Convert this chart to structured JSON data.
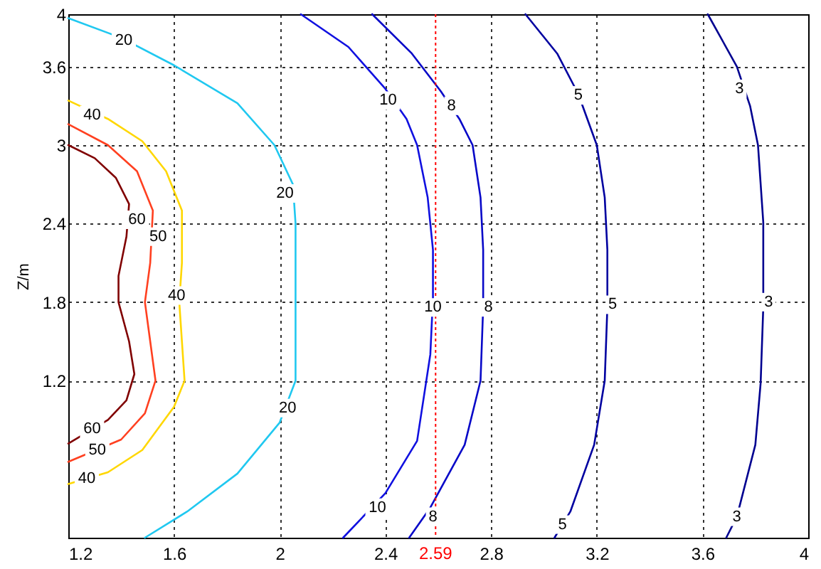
{
  "chart_data": {
    "type": "line",
    "ylabel": "Z/m",
    "xlim": [
      1.2,
      4
    ],
    "ylim": [
      0,
      4
    ],
    "xticks": [
      1.2,
      1.6,
      2,
      2.4,
      2.8,
      3.2,
      3.6,
      4
    ],
    "yticks": [
      1.2,
      1.8,
      2.4,
      3,
      3.6,
      4
    ],
    "grid": true,
    "marker": "none",
    "line_style": "solid",
    "series": [
      {
        "color": "#800000",
        "x": [
          1.2,
          1.3,
          1.38,
          1.43,
          1.42,
          1.39,
          1.39,
          1.43,
          1.45,
          1.42,
          1.35,
          1.2
        ],
        "values": [
          3.0,
          2.9,
          2.75,
          2.55,
          2.3,
          2.0,
          1.8,
          1.5,
          1.25,
          1.05,
          0.9,
          0.72
        ]
      },
      {
        "color": "#ff4020",
        "x": [
          1.2,
          1.35,
          1.46,
          1.52,
          1.51,
          1.49,
          1.51,
          1.53,
          1.49,
          1.4,
          1.2
        ],
        "values": [
          3.16,
          3.0,
          2.8,
          2.5,
          2.1,
          1.8,
          1.5,
          1.2,
          0.95,
          0.75,
          0.58
        ]
      },
      {
        "color": "#ffd700",
        "x": [
          1.2,
          1.35,
          1.48,
          1.57,
          1.63,
          1.63,
          1.62,
          1.63,
          1.64,
          1.6,
          1.48,
          1.35,
          1.2
        ],
        "values": [
          3.34,
          3.2,
          3.03,
          2.8,
          2.5,
          2.1,
          1.8,
          1.5,
          1.2,
          1.0,
          0.67,
          0.5,
          0.41
        ]
      },
      {
        "color": "#20c8f0",
        "x": [
          1.2,
          1.4,
          1.6,
          1.84,
          1.98,
          2.05,
          2.06,
          2.06,
          2.06,
          2.0,
          1.84,
          1.65,
          1.49
        ],
        "values": [
          3.97,
          3.82,
          3.61,
          3.32,
          3.0,
          2.7,
          2.4,
          1.8,
          1.2,
          0.88,
          0.49,
          0.2,
          0
        ]
      },
      {
        "color": "#1010e0",
        "x": [
          2.08,
          2.26,
          2.4,
          2.48,
          2.52,
          2.56,
          2.58,
          2.58,
          2.57,
          2.52,
          2.4,
          2.24
        ],
        "values": [
          4.0,
          3.75,
          3.43,
          3.2,
          3.0,
          2.6,
          2.2,
          1.83,
          1.4,
          0.74,
          0.34,
          0
        ]
      },
      {
        "color": "#0808c8",
        "x": [
          2.35,
          2.5,
          2.61,
          2.68,
          2.73,
          2.76,
          2.77,
          2.77,
          2.76,
          2.7,
          2.57,
          2.49
        ],
        "values": [
          4.0,
          3.7,
          3.41,
          3.2,
          3.0,
          2.6,
          2.2,
          1.76,
          1.2,
          0.71,
          0.23,
          0
        ]
      },
      {
        "color": "#0000a0",
        "x": [
          2.93,
          3.05,
          3.13,
          3.2,
          3.23,
          3.24,
          3.24,
          3.23,
          3.19,
          3.1,
          3.04
        ],
        "values": [
          4.0,
          3.7,
          3.39,
          3.0,
          2.6,
          2.2,
          1.76,
          1.2,
          0.71,
          0.2,
          0
        ]
      },
      {
        "color": "#000090",
        "x": [
          3.62,
          3.73,
          3.78,
          3.81,
          3.83,
          3.83,
          3.82,
          3.8,
          3.73,
          3.69
        ],
        "values": [
          4.0,
          3.6,
          3.3,
          3.0,
          2.41,
          1.76,
          1.18,
          0.71,
          0.16,
          0
        ]
      }
    ],
    "annotations": [
      {
        "text": "60",
        "x": 1.46,
        "y": 2.43
      },
      {
        "text": "60",
        "x": 1.29,
        "y": 0.83
      },
      {
        "text": "50",
        "x": 1.54,
        "y": 2.3
      },
      {
        "text": "50",
        "x": 1.31,
        "y": 0.67
      },
      {
        "text": "40",
        "x": 1.29,
        "y": 3.23
      },
      {
        "text": "40",
        "x": 1.61,
        "y": 1.85
      },
      {
        "text": "40",
        "x": 1.27,
        "y": 0.45
      },
      {
        "text": "20",
        "x": 1.41,
        "y": 3.8
      },
      {
        "text": "20",
        "x": 2.02,
        "y": 2.63
      },
      {
        "text": "20",
        "x": 2.03,
        "y": 0.99
      },
      {
        "text": "10",
        "x": 2.41,
        "y": 3.34
      },
      {
        "text": "10",
        "x": 2.58,
        "y": 1.76
      },
      {
        "text": "10",
        "x": 2.37,
        "y": 0.23
      },
      {
        "text": "8",
        "x": 2.65,
        "y": 3.3
      },
      {
        "text": "8",
        "x": 2.79,
        "y": 1.76
      },
      {
        "text": "8",
        "x": 2.58,
        "y": 0.16
      },
      {
        "text": "5",
        "x": 3.13,
        "y": 3.38
      },
      {
        "text": "5",
        "x": 3.26,
        "y": 1.78
      },
      {
        "text": "5",
        "x": 3.07,
        "y": 0.1
      },
      {
        "text": "3",
        "x": 3.74,
        "y": 3.43
      },
      {
        "text": "3",
        "x": 3.85,
        "y": 1.8
      },
      {
        "text": "3",
        "x": 3.73,
        "y": 0.16
      }
    ],
    "ref_lines": [
      {
        "axis": "x",
        "value": 2.59,
        "label": "2.59",
        "color": "#ff0000",
        "line_style": "dotted"
      }
    ]
  }
}
